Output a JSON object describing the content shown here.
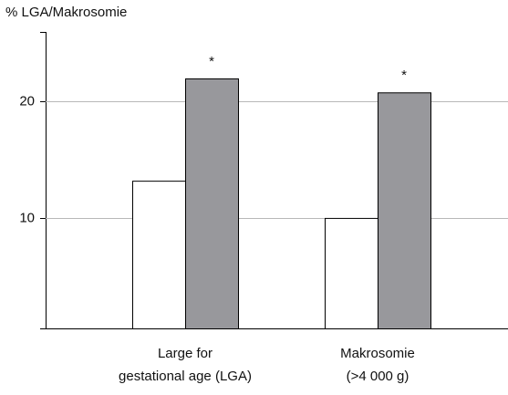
{
  "chart_data": {
    "type": "bar",
    "y_label": "% LGA/Makrosomie",
    "categories": [
      [
        "Large for",
        "gestational age (LGA)"
      ],
      [
        "Makrosomie",
        "(>4 000 g)"
      ]
    ],
    "series": [
      {
        "color": "#ffffff",
        "values": [
          13.2,
          10.0
        ]
      },
      {
        "color": "#98989c",
        "values": [
          22.0,
          20.8
        ]
      }
    ],
    "significance": [
      "*",
      "*"
    ],
    "ylim": [
      0.5,
      26
    ],
    "yticks": [
      10,
      20
    ],
    "grid": true
  }
}
